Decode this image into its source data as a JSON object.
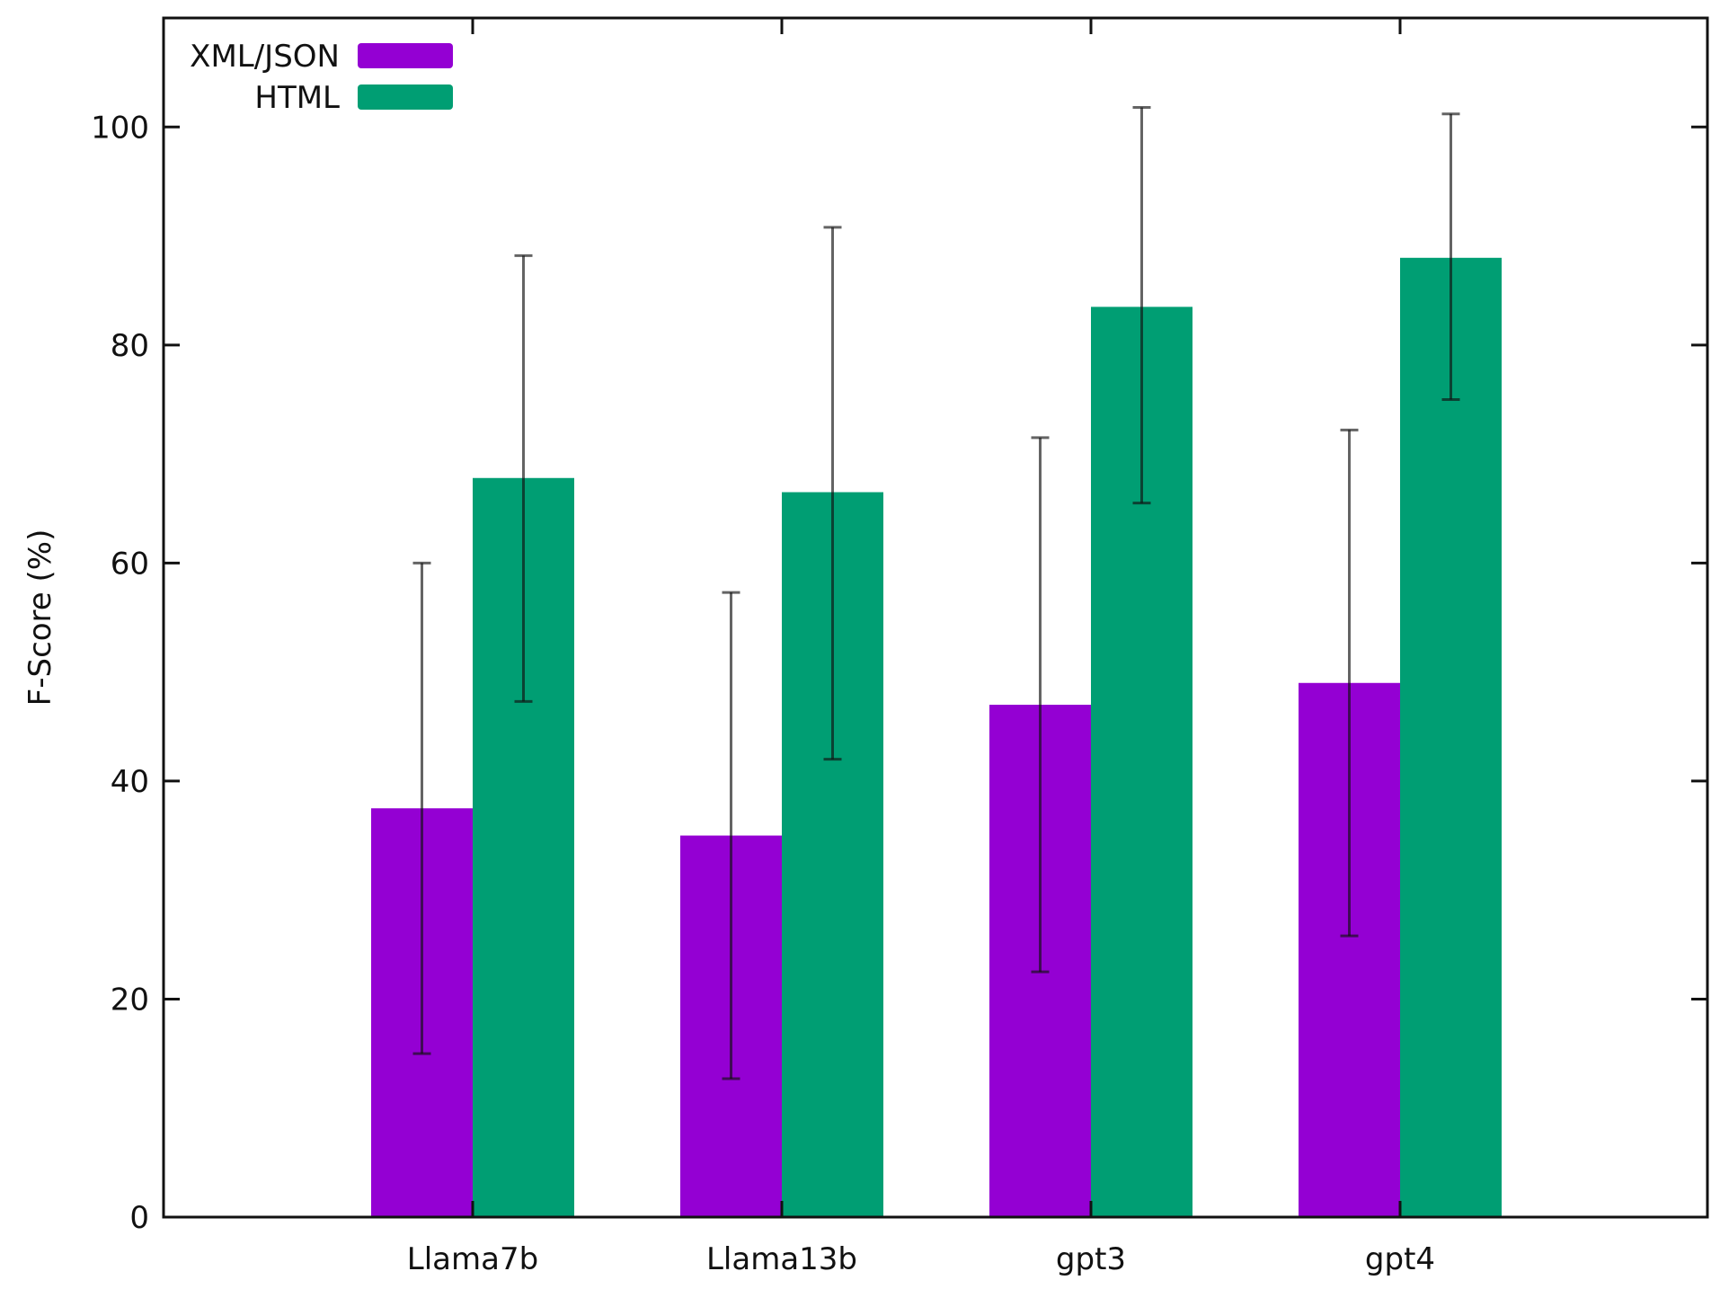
{
  "chart_data": {
    "type": "bar",
    "title": "",
    "xlabel": "",
    "ylabel": "F-Score (%)",
    "ylim": [
      0,
      110
    ],
    "yticks": [
      0,
      20,
      40,
      60,
      80,
      100
    ],
    "grid": false,
    "legend_position": "top-left",
    "categories": [
      "Llama7b",
      "Llama13b",
      "gpt3",
      "gpt4"
    ],
    "series": [
      {
        "name": "XML/JSON",
        "color": "#9400d3",
        "values": [
          37.5,
          35.0,
          47.0,
          49.0
        ],
        "error_low": [
          15.0,
          12.7,
          22.5,
          25.8
        ],
        "error_high": [
          60.0,
          57.3,
          71.5,
          72.2
        ]
      },
      {
        "name": "HTML",
        "color": "#009e73",
        "values": [
          67.8,
          66.5,
          83.5,
          88.0
        ],
        "error_low": [
          47.3,
          42.0,
          65.5,
          75.0
        ],
        "error_high": [
          88.2,
          90.8,
          101.8,
          101.2
        ]
      }
    ]
  }
}
